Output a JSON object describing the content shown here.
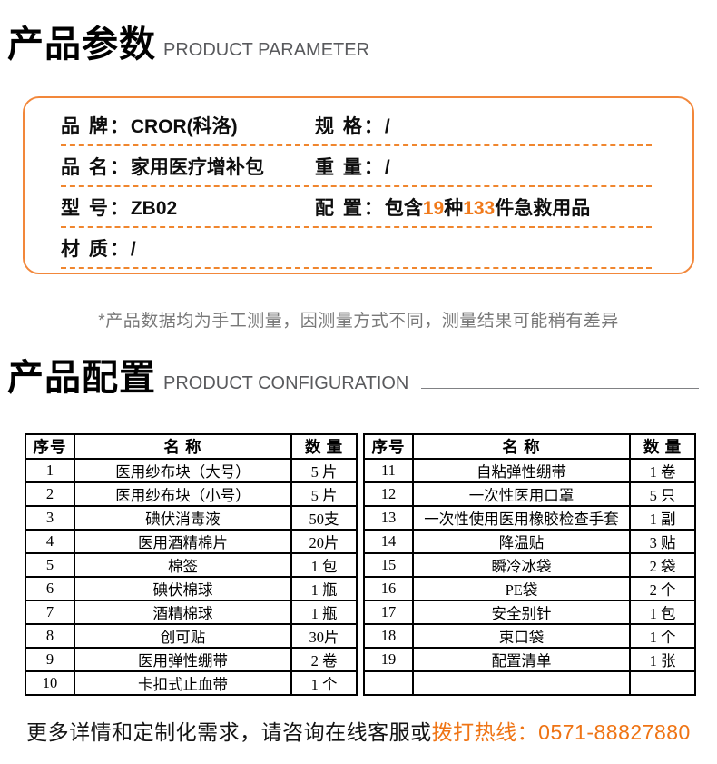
{
  "sections": {
    "parameter": {
      "title": "产品参数",
      "subtitle": "PRODUCT PARAMETER"
    },
    "configuration": {
      "title": "产品配置",
      "subtitle": "PRODUCT CONFIGURATION"
    }
  },
  "parameters": {
    "brand_label": "品 牌：",
    "brand_value": "CROR(科洛)",
    "spec_label": "规 格：",
    "spec_value": "/",
    "name_label": "品 名：",
    "name_value": "家用医疗增补包",
    "weight_label": "重 量：",
    "weight_value": "/",
    "model_label": "型 号：",
    "model_value": "ZB02",
    "config_label": "配 置：",
    "config_value": {
      "pre": "包含",
      "count_types": "19",
      "mid": "种",
      "count_items": "133",
      "post": "件急救用品"
    },
    "material_label": "材 质：",
    "material_value": "/"
  },
  "note": "*产品数据均为手工测量，因测量方式不同，测量结果可能稍有差异",
  "config_table": {
    "headers": {
      "no": "序号",
      "name": "名 称",
      "qty": "数 量"
    },
    "left_rows": [
      {
        "no": "1",
        "name": "医用纱布块（大号）",
        "qty": "5 片"
      },
      {
        "no": "2",
        "name": "医用纱布块（小号）",
        "qty": "5 片"
      },
      {
        "no": "3",
        "name": "碘伏消毒液",
        "qty": "50支"
      },
      {
        "no": "4",
        "name": "医用酒精棉片",
        "qty": "20片"
      },
      {
        "no": "5",
        "name": "棉签",
        "qty": "1 包"
      },
      {
        "no": "6",
        "name": "碘伏棉球",
        "qty": "1 瓶"
      },
      {
        "no": "7",
        "name": "酒精棉球",
        "qty": "1 瓶"
      },
      {
        "no": "8",
        "name": "创可贴",
        "qty": "30片"
      },
      {
        "no": "9",
        "name": "医用弹性绷带",
        "qty": "2 卷"
      },
      {
        "no": "10",
        "name": "卡扣式止血带",
        "qty": "1 个"
      }
    ],
    "right_rows": [
      {
        "no": "11",
        "name": "自粘弹性绷带",
        "qty": "1 卷"
      },
      {
        "no": "12",
        "name": "一次性医用口罩",
        "qty": "5 只"
      },
      {
        "no": "13",
        "name": "一次性使用医用橡胶检查手套",
        "qty": "1 副"
      },
      {
        "no": "14",
        "name": "降温贴",
        "qty": "3 贴"
      },
      {
        "no": "15",
        "name": "瞬冷冰袋",
        "qty": "2 袋"
      },
      {
        "no": "16",
        "name": "PE袋",
        "qty": "2 个"
      },
      {
        "no": "17",
        "name": "安全别针",
        "qty": "1 包"
      },
      {
        "no": "18",
        "name": "束口袋",
        "qty": "1 个"
      },
      {
        "no": "19",
        "name": "配置清单",
        "qty": "1 张"
      },
      {
        "no": "",
        "name": "",
        "qty": ""
      }
    ]
  },
  "footer": {
    "text_black": "更多详情和定制化需求，请咨询在线客服或",
    "text_orange": "拨打热线：0571-88827880"
  },
  "colors": {
    "accent_orange": "#f0791a",
    "box_border_orange": "#f2873a",
    "dash_orange": "#f0862e",
    "rule_gray": "#808184",
    "subtitle_gray": "#595a5d"
  }
}
